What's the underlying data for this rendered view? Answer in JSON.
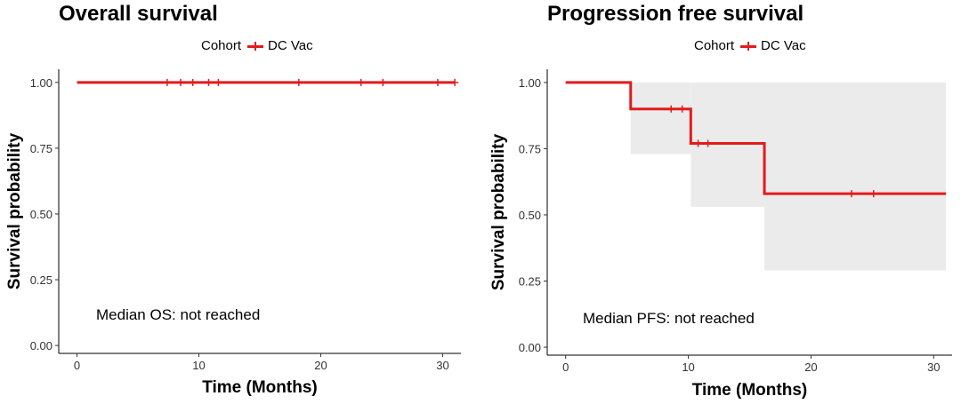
{
  "chart_data": [
    {
      "type": "line",
      "title": "Overall survival",
      "legend": {
        "title": "Cohort",
        "entries": [
          "DC Vac"
        ],
        "position": "top"
      },
      "xlabel": "Time (Months)",
      "ylabel": "Survival probability",
      "xlim": [
        -1.5,
        31.5
      ],
      "ylim": [
        -0.03,
        1.05
      ],
      "xticks": [
        0,
        10,
        20,
        30
      ],
      "yticks": [
        0.0,
        0.25,
        0.5,
        0.75,
        1.0
      ],
      "ytick_labels": [
        "0.00",
        "0.25",
        "0.50",
        "0.75",
        "1.00"
      ],
      "series": [
        {
          "name": "DC Vac",
          "color": "#e41a1c",
          "steps": [
            [
              0,
              1.0
            ],
            [
              31,
              1.0
            ]
          ],
          "censored": [
            [
              7.4,
              1.0
            ],
            [
              8.5,
              1.0
            ],
            [
              9.5,
              1.0
            ],
            [
              10.8,
              1.0
            ],
            [
              11.6,
              1.0
            ],
            [
              18.2,
              1.0
            ],
            [
              23.3,
              1.0
            ],
            [
              25.1,
              1.0
            ],
            [
              29.6,
              1.0
            ],
            [
              31.0,
              1.0
            ]
          ],
          "ci_band": []
        }
      ],
      "annotation": "Median OS: not reached",
      "grid": false
    },
    {
      "type": "line",
      "title": "Progression free survival",
      "legend": {
        "title": "Cohort",
        "entries": [
          "DC Vac"
        ],
        "position": "top"
      },
      "xlabel": "Time (Months)",
      "ylabel": "Survival probability",
      "xlim": [
        -1.5,
        31.5
      ],
      "ylim": [
        -0.03,
        1.05
      ],
      "xticks": [
        0,
        10,
        20,
        30
      ],
      "yticks": [
        0.0,
        0.25,
        0.5,
        0.75,
        1.0
      ],
      "ytick_labels": [
        "0.00",
        "0.25",
        "0.50",
        "0.75",
        "1.00"
      ],
      "series": [
        {
          "name": "DC Vac",
          "color": "#e41a1c",
          "steps": [
            [
              0,
              1.0
            ],
            [
              5.3,
              0.9
            ],
            [
              10.2,
              0.77
            ],
            [
              16.2,
              0.58
            ],
            [
              31.0,
              0.58
            ]
          ],
          "censored": [
            [
              8.6,
              0.9
            ],
            [
              9.5,
              0.9
            ],
            [
              10.8,
              0.77
            ],
            [
              11.6,
              0.77
            ],
            [
              23.3,
              0.58
            ],
            [
              25.1,
              0.58
            ]
          ],
          "ci_band": [
            [
              5.3,
              0.73,
              1.0
            ],
            [
              10.2,
              0.53,
              1.0
            ],
            [
              16.2,
              0.29,
              1.0
            ],
            [
              31.0,
              0.29,
              1.0
            ]
          ]
        }
      ],
      "annotation": "Median PFS: not reached",
      "grid": false
    }
  ]
}
